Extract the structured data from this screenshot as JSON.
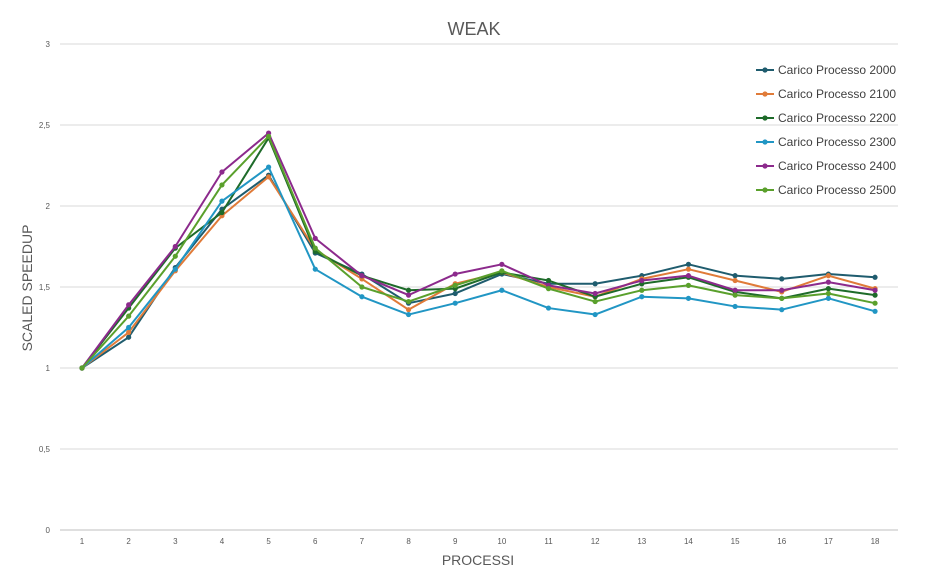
{
  "chart_data": {
    "type": "line",
    "title": "WEAK",
    "xlabel": "PROCESSI",
    "ylabel": "SCALED SPEEDUP",
    "ylim": [
      0,
      3
    ],
    "y_ticks": [
      "0",
      "0,5",
      "1",
      "1,5",
      "2",
      "2,5",
      "3"
    ],
    "y_tick_values": [
      0,
      0.5,
      1,
      1.5,
      2,
      2.5,
      3
    ],
    "categories": [
      "1",
      "2",
      "3",
      "4",
      "5",
      "6",
      "7",
      "8",
      "9",
      "10",
      "11",
      "12",
      "13",
      "14",
      "15",
      "16",
      "17",
      "18"
    ],
    "grid": "horizontal",
    "legend_position": "right",
    "series": [
      {
        "name": "Carico Processo 2000",
        "color": "#1f5c6e",
        "values": [
          1.0,
          1.19,
          1.62,
          1.98,
          2.19,
          1.71,
          1.58,
          1.4,
          1.46,
          1.58,
          1.52,
          1.52,
          1.57,
          1.64,
          1.57,
          1.55,
          1.58,
          1.56
        ]
      },
      {
        "name": "Carico Processo 2100",
        "color": "#e07b39",
        "values": [
          1.0,
          1.22,
          1.6,
          1.94,
          2.18,
          1.73,
          1.55,
          1.36,
          1.52,
          1.59,
          1.5,
          1.44,
          1.55,
          1.61,
          1.54,
          1.47,
          1.57,
          1.49
        ]
      },
      {
        "name": "Carico Processo 2200",
        "color": "#1e6b2a",
        "values": [
          1.0,
          1.37,
          1.74,
          1.96,
          2.42,
          1.72,
          1.57,
          1.48,
          1.49,
          1.59,
          1.54,
          1.44,
          1.52,
          1.56,
          1.47,
          1.43,
          1.49,
          1.45
        ]
      },
      {
        "name": "Carico Processo 2300",
        "color": "#2196c4",
        "values": [
          1.0,
          1.25,
          1.61,
          2.03,
          2.24,
          1.61,
          1.44,
          1.33,
          1.4,
          1.48,
          1.37,
          1.33,
          1.44,
          1.43,
          1.38,
          1.36,
          1.43,
          1.35
        ]
      },
      {
        "name": "Carico Processo 2400",
        "color": "#8c2a8c",
        "values": [
          1.0,
          1.39,
          1.75,
          2.21,
          2.45,
          1.8,
          1.57,
          1.45,
          1.58,
          1.64,
          1.51,
          1.46,
          1.54,
          1.57,
          1.48,
          1.48,
          1.53,
          1.48
        ]
      },
      {
        "name": "Carico Processo 2500",
        "color": "#5aa02c",
        "values": [
          1.0,
          1.32,
          1.69,
          2.13,
          2.43,
          1.74,
          1.5,
          1.41,
          1.51,
          1.6,
          1.49,
          1.41,
          1.48,
          1.51,
          1.45,
          1.43,
          1.46,
          1.4
        ]
      }
    ]
  }
}
